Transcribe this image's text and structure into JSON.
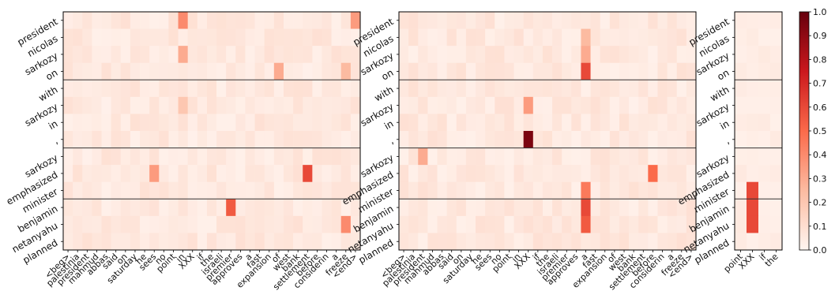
{
  "chart_data": {
    "type": "heatmap",
    "colorbar": {
      "colors": [
        "#fff5f0",
        "#fcbba1",
        "#fb6a4a",
        "#cb181d",
        "#67000d"
      ],
      "ticks": [
        "0.0",
        "0.1",
        "0.2",
        "0.3",
        "0.4",
        "0.5",
        "0.6",
        "0.7",
        "0.8",
        "0.9",
        "1.0"
      ],
      "range": [
        0,
        1
      ]
    },
    "y_labels": [
      "president",
      "nicolas",
      "sarkozy",
      "on",
      "with",
      "sarkozy",
      "in",
      ",",
      "sarkozy",
      "emphasized",
      "minister",
      "benjamin",
      "netanyahu",
      "planned"
    ],
    "panels": [
      {
        "x_labels": [
          "<beg>",
          "palestinia",
          "president",
          "mahmud",
          "abbas",
          "said",
          "on",
          "saturday",
          "he",
          "sees",
          "no",
          "point",
          "in",
          "XXX",
          "if",
          "the",
          "israeli",
          "premier",
          "approves",
          "a",
          "fast",
          "expansion",
          "of",
          "west",
          "bank",
          "settlement",
          "before",
          "considerin",
          "a",
          "freeze",
          "<end>"
        ],
        "hot_cells": [
          {
            "x": "in",
            "y": "president",
            "value": 0.4
          },
          {
            "x": "in",
            "y": "sarkozy",
            "value": 0.3
          },
          {
            "x": "in",
            "y": "sarkozy",
            "value": 0.2
          },
          {
            "x": "of",
            "y": "on",
            "value": 0.3
          },
          {
            "x": "sees",
            "y": "emphasized",
            "value": 0.35
          },
          {
            "x": "premier",
            "y": "benjamin",
            "value": 0.55
          },
          {
            "x": "settlement",
            "y": "emphasized",
            "value": 0.6
          },
          {
            "x": "freeze",
            "y": "netanyahu",
            "value": 0.4
          },
          {
            "x": "<end>",
            "y": "president",
            "value": 0.35
          },
          {
            "x": "freeze",
            "y": "on",
            "value": 0.25
          }
        ]
      },
      {
        "x_labels": [
          "<beg>",
          "palestinia",
          "president",
          "mahmud",
          "abbas",
          "said",
          "on",
          "saturday",
          "he",
          "sees",
          "no",
          "point",
          "in",
          "XXX",
          "if",
          "the",
          "israeli",
          "premier",
          "approves",
          "a",
          "fast",
          "expansion",
          "of",
          "west",
          "bank",
          "settlement",
          "before",
          "considerin",
          "a",
          "freeze",
          "<end>"
        ],
        "hot_cells": [
          {
            "x": "a",
            "y": "on",
            "value": 0.6
          },
          {
            "x": "a",
            "y": "sarkozy",
            "value": 0.3
          },
          {
            "x": "a",
            "y": "nicolas",
            "value": 0.25
          },
          {
            "x": "XXX",
            "y": ",",
            "value": 0.95
          },
          {
            "x": "XXX",
            "y": "sarkozy",
            "value": 0.35
          },
          {
            "x": "a",
            "y": "benjamin",
            "value": 0.6
          },
          {
            "x": "a",
            "y": "minister",
            "value": 0.45
          },
          {
            "x": "a",
            "y": "netanyahu",
            "value": 0.55
          },
          {
            "x": "before",
            "y": "emphasized",
            "value": 0.5
          },
          {
            "x": "president",
            "y": "sarkozy",
            "value": 0.3
          }
        ]
      },
      {
        "x_labels": [
          "point",
          "XXX",
          "if",
          "the"
        ],
        "hot_cells": [
          {
            "x": "XXX",
            "y": "minister",
            "value": 0.6
          },
          {
            "x": "XXX",
            "y": "benjamin",
            "value": 0.6
          },
          {
            "x": "XXX",
            "y": "netanyahu",
            "value": 0.6
          }
        ]
      }
    ]
  }
}
